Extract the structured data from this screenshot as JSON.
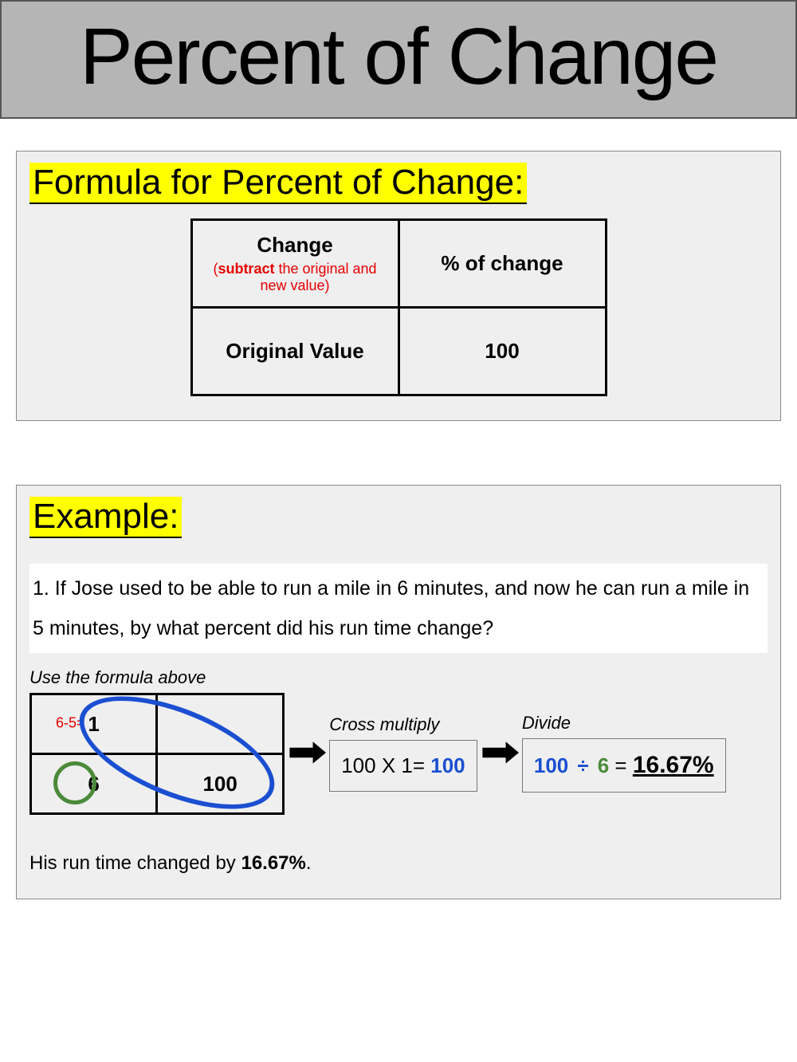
{
  "title": "Percent of Change",
  "formula": {
    "heading": "Formula for Percent of Change:",
    "cells": {
      "tl_main": "Change",
      "tl_sub_prefix": "(",
      "tl_sub_bold": "subtract",
      "tl_sub_rest": " the original and new value)",
      "tr": "% of change",
      "bl": "Original Value",
      "br": "100"
    }
  },
  "example": {
    "heading": "Example:",
    "question": "1. If Jose used to be able to run a mile in 6 minutes, and now he can run a mile in 5 minutes, by what percent did his run time change?",
    "hint": "Use the formula above",
    "mini": {
      "subtract_note": "6-5=",
      "tl": "1",
      "tr": "",
      "bl": "6",
      "br": "100"
    },
    "cross": {
      "label": "Cross multiply",
      "expr_left": "100 X 1= ",
      "expr_result": "100"
    },
    "divide": {
      "label": "Divide",
      "a": "100",
      "sym": "÷",
      "b": "6",
      "eq": " = ",
      "result": "16.67%"
    },
    "conclusion_prefix": "His run time changed by ",
    "conclusion_value": "16.67%",
    "conclusion_suffix": "."
  },
  "colors": {
    "banner_bg": "#b5b5b5",
    "panel_bg": "#efefef",
    "highlight": "#ffff00",
    "red": "#e60000",
    "blue": "#1b4fd1",
    "green": "#4b8a3a"
  }
}
